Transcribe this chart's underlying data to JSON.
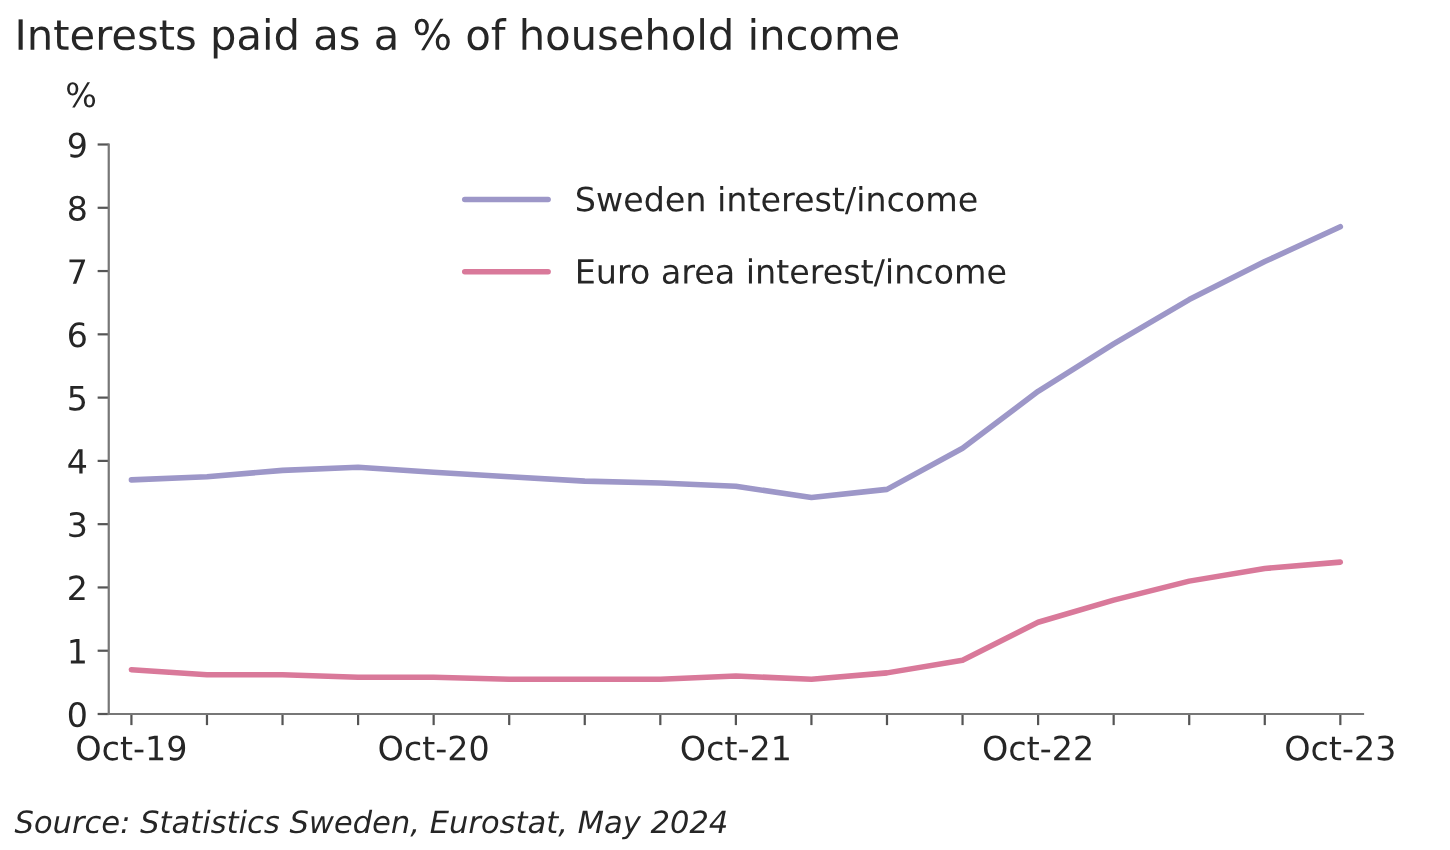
{
  "chart_data": {
    "type": "line",
    "title": "Interests paid as a % of household income",
    "ylabel": "%",
    "categories": [
      "Oct-19",
      null,
      null,
      null,
      "Oct-20",
      null,
      null,
      null,
      "Oct-21",
      null,
      null,
      null,
      "Oct-22",
      null,
      null,
      null,
      "Oct-23"
    ],
    "series": [
      {
        "name": "Sweden interest/income",
        "color": "#9d97c8",
        "values": [
          3.7,
          3.75,
          3.85,
          3.9,
          3.82,
          3.75,
          3.68,
          3.65,
          3.6,
          3.42,
          3.55,
          4.2,
          5.1,
          5.85,
          6.55,
          7.15,
          7.7
        ]
      },
      {
        "name": "Euro area interest/income",
        "color": "#d9799a",
        "values": [
          0.7,
          0.62,
          0.62,
          0.58,
          0.58,
          0.55,
          0.55,
          0.55,
          0.6,
          0.55,
          0.65,
          0.85,
          1.45,
          1.8,
          2.1,
          2.3,
          2.4
        ]
      }
    ],
    "ylim": [
      0,
      9
    ],
    "yticks": [
      0,
      1,
      2,
      3,
      4,
      5,
      6,
      7,
      8,
      9
    ],
    "grid": false,
    "legend": "top",
    "marker": "none",
    "line_style": "solid",
    "annotations": [
      "Source: Statistics Sweden, Eurostat, May 2024"
    ]
  }
}
